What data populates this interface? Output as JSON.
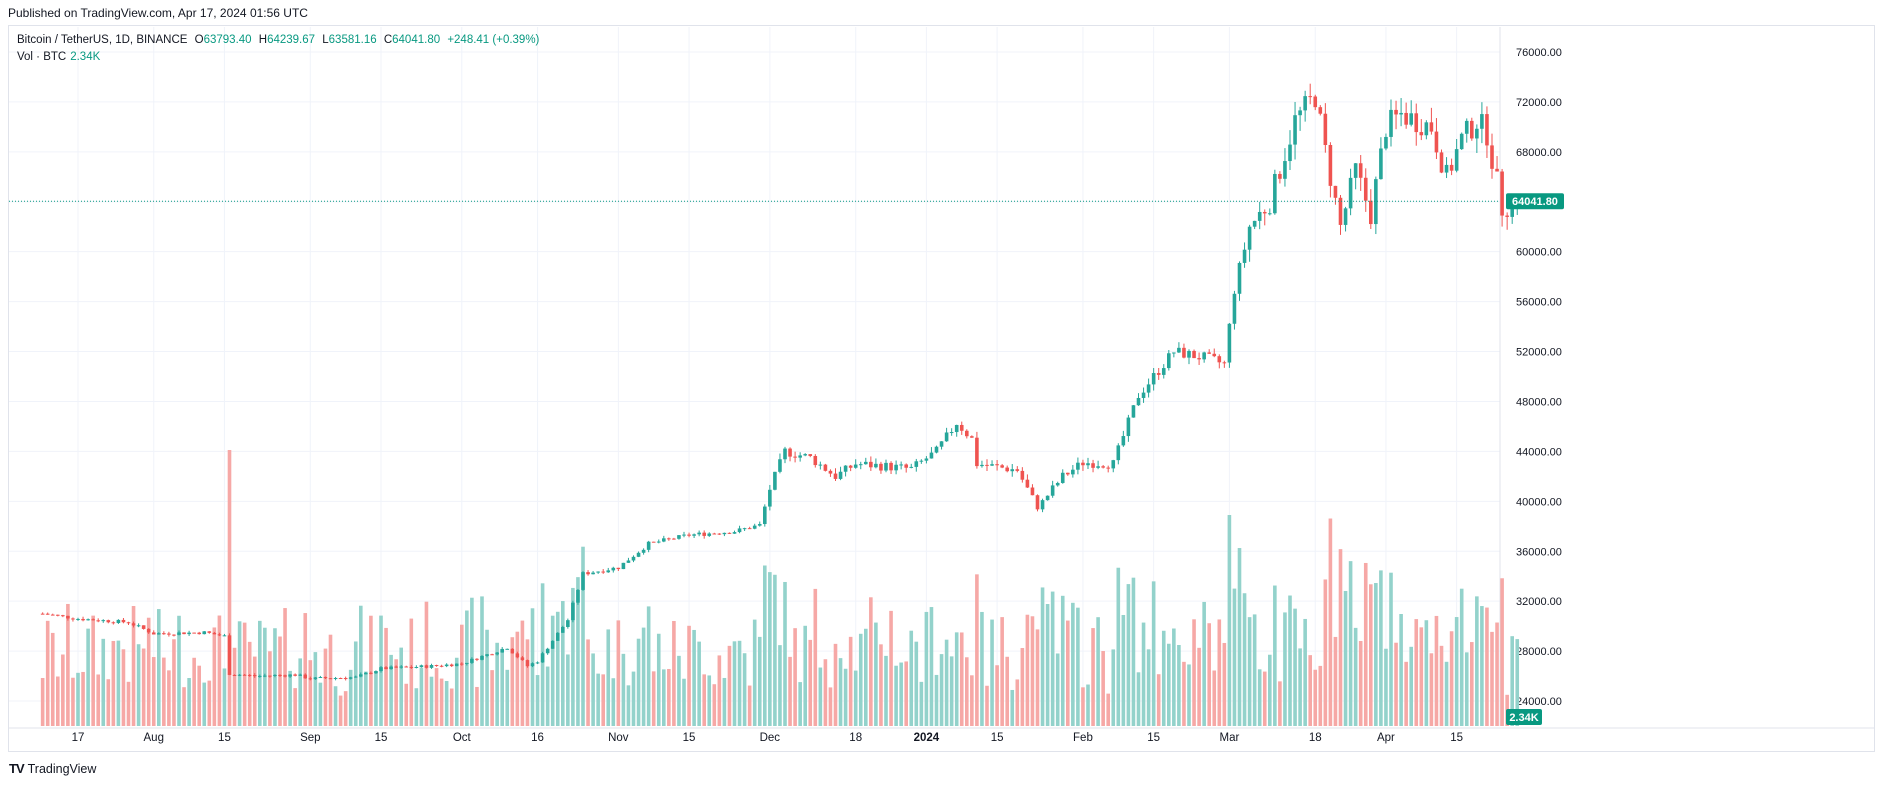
{
  "header": {
    "published": "Published on TradingView.com, Apr 17, 2024 01:56 UTC"
  },
  "legend": {
    "symbol": "Bitcoin / TetherUS, 1D, BINANCE",
    "open_label": "O",
    "open": "63793.40",
    "high_label": "H",
    "high": "64239.67",
    "low_label": "L",
    "low": "63581.16",
    "close_label": "C",
    "close": "64041.80",
    "change": "+248.41 (+0.39%)",
    "volume_label": "Vol · BTC",
    "volume": "2.34K"
  },
  "footer": {
    "brand": "TradingView",
    "logo": "TV"
  },
  "colors": {
    "up": "#26a69a",
    "down": "#ef5350",
    "accent": "#089981",
    "vol_up": "#93d2cb",
    "vol_down": "#f6a8a6",
    "grid": "#f0f3fa"
  },
  "chart_data": {
    "type": "candlestick",
    "ylim": [
      22000,
      78000
    ],
    "y_ticks": [
      "76000.00",
      "72000.00",
      "68000.00",
      "64000.00",
      "60000.00",
      "56000.00",
      "52000.00",
      "48000.00",
      "44000.00",
      "40000.00",
      "36000.00",
      "32000.00",
      "28000.00",
      "24000.00"
    ],
    "y_tick_values": [
      76000,
      72000,
      68000,
      64000,
      60000,
      56000,
      52000,
      48000,
      44000,
      40000,
      36000,
      32000,
      28000,
      24000
    ],
    "x_ticks": [
      {
        "label": "17",
        "day": 0
      },
      {
        "label": "Aug",
        "day": 15
      },
      {
        "label": "15",
        "day": 29
      },
      {
        "label": "Sep",
        "day": 46
      },
      {
        "label": "15",
        "day": 60
      },
      {
        "label": "Oct",
        "day": 76
      },
      {
        "label": "16",
        "day": 91
      },
      {
        "label": "Nov",
        "day": 107
      },
      {
        "label": "15",
        "day": 121
      },
      {
        "label": "Dec",
        "day": 137
      },
      {
        "label": "18",
        "day": 154
      },
      {
        "label": "2024",
        "day": 168
      },
      {
        "label": "15",
        "day": 182
      },
      {
        "label": "Feb",
        "day": 199
      },
      {
        "label": "15",
        "day": 213
      },
      {
        "label": "Mar",
        "day": 228
      },
      {
        "label": "18",
        "day": 245
      },
      {
        "label": "Apr",
        "day": 259
      },
      {
        "label": "15",
        "day": 273
      }
    ],
    "first_day_offset": -7,
    "price_key_points": [
      [
        -7,
        31000
      ],
      [
        0,
        30600
      ],
      [
        10,
        30300
      ],
      [
        15,
        29400
      ],
      [
        25,
        29500
      ],
      [
        29,
        29200
      ],
      [
        30,
        26200
      ],
      [
        35,
        26000
      ],
      [
        43,
        26100
      ],
      [
        46,
        25800
      ],
      [
        55,
        25900
      ],
      [
        60,
        26600
      ],
      [
        70,
        26800
      ],
      [
        76,
        27000
      ],
      [
        85,
        28300
      ],
      [
        89,
        26800
      ],
      [
        91,
        27200
      ],
      [
        97,
        30500
      ],
      [
        100,
        34200
      ],
      [
        107,
        34700
      ],
      [
        113,
        36600
      ],
      [
        121,
        37300
      ],
      [
        130,
        37600
      ],
      [
        135,
        38100
      ],
      [
        137,
        41000
      ],
      [
        140,
        44000
      ],
      [
        145,
        43500
      ],
      [
        150,
        42000
      ],
      [
        154,
        43000
      ],
      [
        160,
        42800
      ],
      [
        165,
        42600
      ],
      [
        170,
        44000
      ],
      [
        174,
        46300
      ],
      [
        177,
        45000
      ],
      [
        178,
        43000
      ],
      [
        186,
        42500
      ],
      [
        190,
        39500
      ],
      [
        195,
        42000
      ],
      [
        199,
        43100
      ],
      [
        205,
        43000
      ],
      [
        210,
        48500
      ],
      [
        213,
        50000
      ],
      [
        217,
        52000
      ],
      [
        223,
        51500
      ],
      [
        227,
        51000
      ],
      [
        229,
        57000
      ],
      [
        232,
        62000
      ],
      [
        236,
        64000
      ],
      [
        241,
        70500
      ],
      [
        245,
        72500
      ],
      [
        247,
        68000
      ],
      [
        250,
        62000
      ],
      [
        253,
        66500
      ],
      [
        256,
        63000
      ],
      [
        259,
        70000
      ],
      [
        262,
        71000
      ],
      [
        268,
        70000
      ],
      [
        271,
        66000
      ],
      [
        274,
        69000
      ],
      [
        277,
        70500
      ],
      [
        279,
        69500
      ],
      [
        282,
        63500
      ],
      [
        285,
        64041.8
      ]
    ],
    "volume_ylim": [
      0,
      200000
    ],
    "last_close": 64041.8,
    "last_close_label": "64041.80",
    "last_volume_label": "2.34K"
  }
}
